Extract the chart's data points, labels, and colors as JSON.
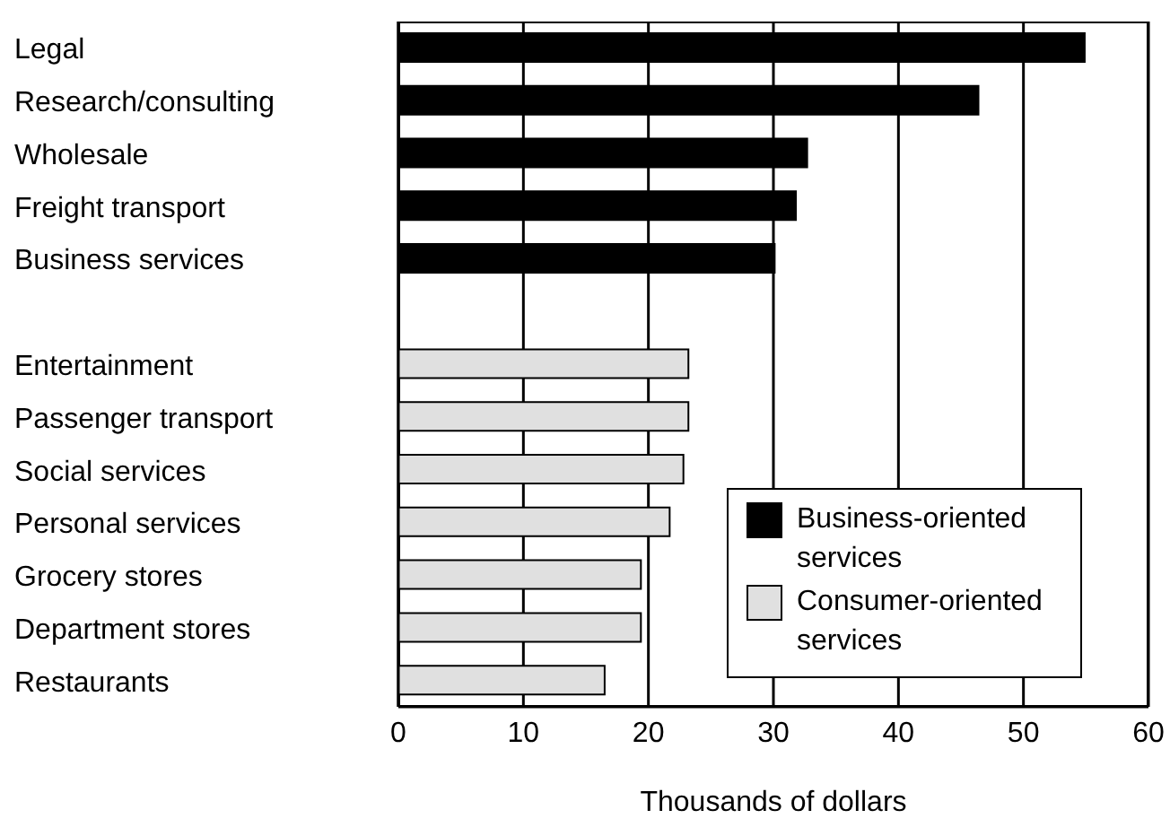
{
  "chart_data": {
    "type": "bar",
    "orientation": "horizontal",
    "stacked": true,
    "xlabel": "Thousands of dollars",
    "categories": [
      "Legal",
      "Research/consulting",
      "Wholesale",
      "Freight transport",
      "Business services",
      null,
      "Entertainment",
      "Passenger transport",
      "Social services",
      "Personal services",
      "Grocery stores",
      "Department stores",
      "Restaurants"
    ],
    "series": [
      {
        "name": "Business-oriented services",
        "color": "#000000",
        "values": [
          54.9,
          46.4,
          32.7,
          31.8,
          30.1,
          null,
          null,
          null,
          null,
          null,
          null,
          null,
          null
        ]
      },
      {
        "name": "Consumer-oriented services",
        "color": "#e0e0e0",
        "values": [
          null,
          null,
          null,
          null,
          null,
          null,
          23.2,
          23.2,
          22.8,
          21.7,
          19.4,
          19.4,
          16.5
        ]
      }
    ],
    "xlim": [
      0,
      60
    ],
    "xticks": [
      0,
      10,
      20,
      30,
      40,
      50,
      60
    ],
    "grid": "x",
    "legend": "bottom right"
  }
}
